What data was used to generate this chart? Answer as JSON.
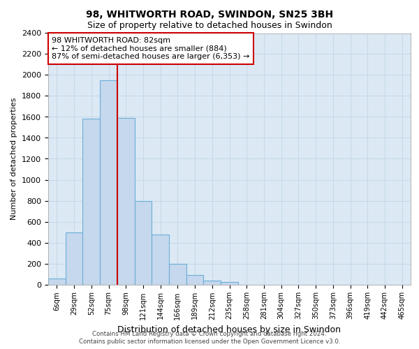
{
  "title1": "98, WHITWORTH ROAD, SWINDON, SN25 3BH",
  "title2": "Size of property relative to detached houses in Swindon",
  "xlabel": "Distribution of detached houses by size in Swindon",
  "ylabel": "Number of detached properties",
  "footer1": "Contains HM Land Registry data © Crown copyright and database right 2024.",
  "footer2": "Contains public sector information licensed under the Open Government Licence v3.0.",
  "categories": [
    "6sqm",
    "29sqm",
    "52sqm",
    "75sqm",
    "98sqm",
    "121sqm",
    "144sqm",
    "166sqm",
    "189sqm",
    "212sqm",
    "235sqm",
    "258sqm",
    "281sqm",
    "304sqm",
    "327sqm",
    "350sqm",
    "373sqm",
    "396sqm",
    "419sqm",
    "442sqm",
    "465sqm"
  ],
  "values": [
    55,
    500,
    1580,
    1950,
    1590,
    800,
    475,
    195,
    90,
    35,
    25,
    0,
    0,
    0,
    0,
    0,
    0,
    0,
    0,
    0,
    0
  ],
  "bar_color": "#c5d8ed",
  "bar_edgecolor": "#6baed6",
  "vline_color": "#cc0000",
  "vline_x_index": 3.5,
  "annotation_line1": "98 WHITWORTH ROAD: 82sqm",
  "annotation_line2": "← 12% of detached houses are smaller (884)",
  "annotation_line3": "87% of semi-detached houses are larger (6,353) →",
  "ylim": [
    0,
    2400
  ],
  "yticks": [
    0,
    200,
    400,
    600,
    800,
    1000,
    1200,
    1400,
    1600,
    1800,
    2000,
    2200,
    2400
  ],
  "bg_color": "#dce9f5",
  "grid_color": "#c8d8e8"
}
